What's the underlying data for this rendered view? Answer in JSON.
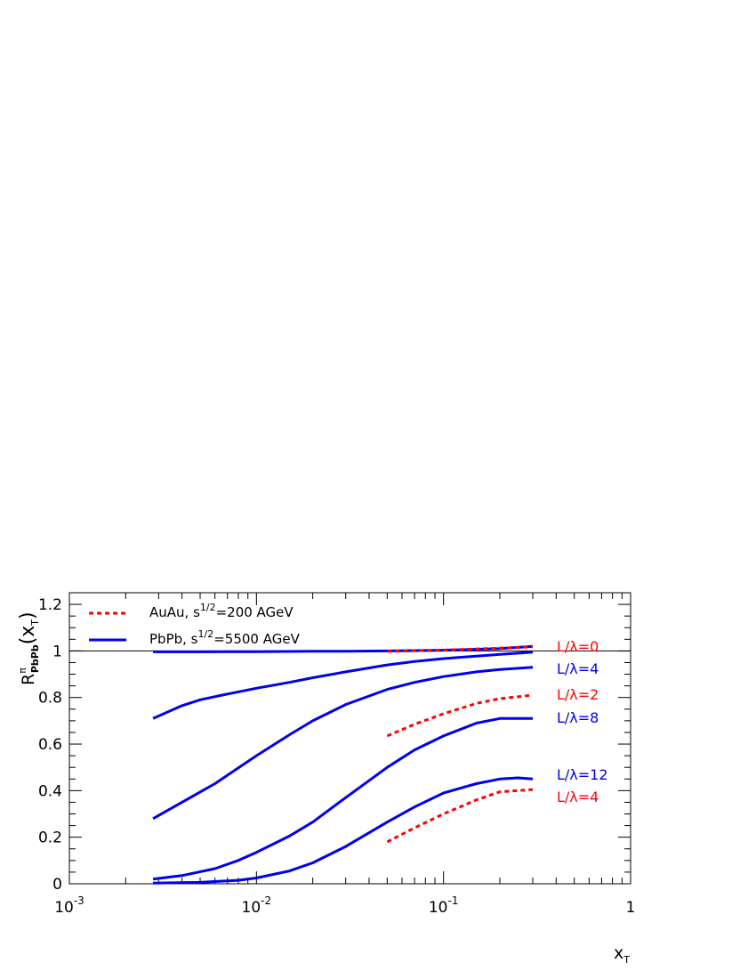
{
  "chart_data": {
    "type": "line",
    "title": "",
    "xlabel": "x",
    "xlabel_sub": "T",
    "ylabel": "R",
    "ylabel_sup": "π",
    "ylabel_sub": "PbPb",
    "ylabel_arg": "(x",
    "ylabel_arg_sub": "T",
    "ylabel_arg_close": ")",
    "xscale": "log",
    "xlim": [
      0.001,
      1
    ],
    "ylim": [
      0,
      1.25
    ],
    "xticks": [
      {
        "value": 0.001,
        "base": "10",
        "exp": "-3"
      },
      {
        "value": 0.01,
        "base": "10",
        "exp": "-2"
      },
      {
        "value": 0.1,
        "base": "10",
        "exp": "-1"
      },
      {
        "value": 1,
        "base": "1",
        "exp": ""
      }
    ],
    "yticks": [
      {
        "value": 0,
        "label": "0"
      },
      {
        "value": 0.2,
        "label": "0.2"
      },
      {
        "value": 0.4,
        "label": "0.4"
      },
      {
        "value": 0.6,
        "label": "0.6"
      },
      {
        "value": 0.8,
        "label": "0.8"
      },
      {
        "value": 1.0,
        "label": "1"
      },
      {
        "value": 1.2,
        "label": "1.2"
      }
    ],
    "reference_line": 1,
    "grid": false,
    "legend_position": "top-left",
    "legend": [
      {
        "series": "AuAu",
        "text": "AuAu, s",
        "sup": "1/2",
        "rest": "=200 AGeV",
        "color": "#ff0000",
        "dashed": true
      },
      {
        "series": "PbPb",
        "text": "PbPb, s",
        "sup": "1/2",
        "rest": "=5500 AGeV",
        "color": "#0000ee",
        "dashed": false
      }
    ],
    "series": [
      {
        "group": "PbPb",
        "color": "#0000ee",
        "dashed": false,
        "x": [
          0.0028,
          0.005,
          0.01,
          0.02,
          0.03,
          0.05,
          0.1,
          0.2,
          0.3
        ],
        "y": [
          0.996,
          0.996,
          0.997,
          0.999,
          0.999,
          1.0,
          1.003,
          1.01,
          1.02
        ]
      },
      {
        "group": "PbPb",
        "color": "#0000ee",
        "dashed": false,
        "x": [
          0.0028,
          0.004,
          0.005,
          0.007,
          0.01,
          0.015,
          0.02,
          0.03,
          0.05,
          0.07,
          0.1,
          0.15,
          0.2,
          0.3
        ],
        "y": [
          0.71,
          0.765,
          0.79,
          0.815,
          0.84,
          0.865,
          0.885,
          0.91,
          0.94,
          0.955,
          0.967,
          0.978,
          0.985,
          0.995
        ]
      },
      {
        "group": "PbPb",
        "color": "#0000ee",
        "dashed": false,
        "x": [
          0.0028,
          0.004,
          0.006,
          0.01,
          0.015,
          0.02,
          0.03,
          0.05,
          0.07,
          0.1,
          0.15,
          0.2,
          0.3
        ],
        "y": [
          0.28,
          0.35,
          0.43,
          0.55,
          0.64,
          0.7,
          0.77,
          0.835,
          0.865,
          0.89,
          0.91,
          0.92,
          0.93
        ]
      },
      {
        "group": "PbPb",
        "color": "#0000ee",
        "dashed": false,
        "x": [
          0.0028,
          0.004,
          0.006,
          0.008,
          0.01,
          0.015,
          0.02,
          0.03,
          0.05,
          0.07,
          0.1,
          0.15,
          0.2,
          0.3
        ],
        "y": [
          0.02,
          0.035,
          0.065,
          0.1,
          0.135,
          0.205,
          0.265,
          0.37,
          0.5,
          0.575,
          0.635,
          0.69,
          0.71,
          0.71
        ]
      },
      {
        "group": "PbPb",
        "color": "#0000ee",
        "dashed": false,
        "x": [
          0.0028,
          0.005,
          0.008,
          0.01,
          0.015,
          0.02,
          0.03,
          0.05,
          0.07,
          0.1,
          0.15,
          0.2,
          0.25,
          0.3
        ],
        "y": [
          0.003,
          0.006,
          0.015,
          0.025,
          0.055,
          0.09,
          0.16,
          0.265,
          0.33,
          0.39,
          0.43,
          0.45,
          0.455,
          0.45
        ]
      },
      {
        "group": "AuAu",
        "color": "#ff0000",
        "dashed": true,
        "x": [
          0.05,
          0.1,
          0.2,
          0.3
        ],
        "y": [
          0.998,
          1.004,
          1.012,
          1.018
        ]
      },
      {
        "group": "AuAu",
        "color": "#ff0000",
        "dashed": true,
        "x": [
          0.05,
          0.07,
          0.1,
          0.15,
          0.2,
          0.3
        ],
        "y": [
          0.635,
          0.685,
          0.73,
          0.775,
          0.795,
          0.81
        ]
      },
      {
        "group": "AuAu",
        "color": "#ff0000",
        "dashed": true,
        "x": [
          0.05,
          0.07,
          0.1,
          0.15,
          0.2,
          0.3
        ],
        "y": [
          0.18,
          0.24,
          0.3,
          0.36,
          0.395,
          0.405
        ]
      }
    ],
    "annotations": [
      {
        "text": "L/λ=0",
        "color": "#ff0000",
        "y": 1.02
      },
      {
        "text": "L/λ=4",
        "color": "#0000ee",
        "y": 0.925
      },
      {
        "text": "L/λ=2",
        "color": "#ff0000",
        "y": 0.815
      },
      {
        "text": "L/λ=8",
        "color": "#0000ee",
        "y": 0.715
      },
      {
        "text": "L/λ=12",
        "color": "#0000ee",
        "y": 0.47
      },
      {
        "text": "L/λ=4",
        "color": "#ff0000",
        "y": 0.375
      }
    ]
  }
}
